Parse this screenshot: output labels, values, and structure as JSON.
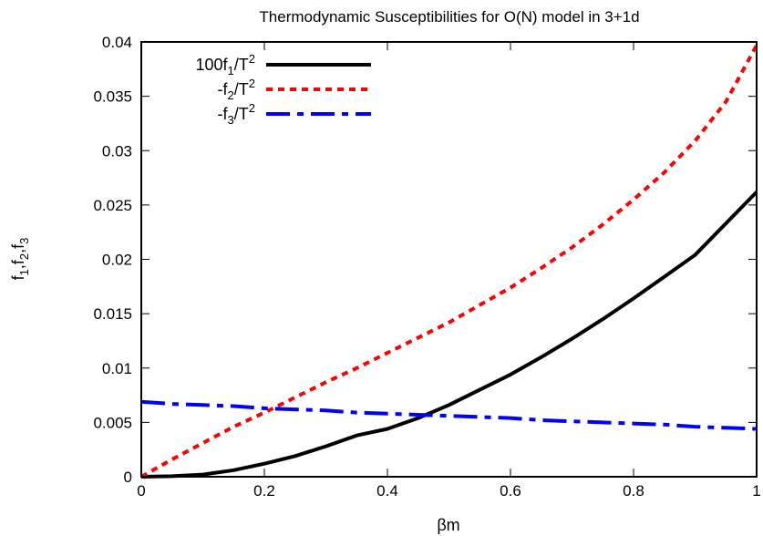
{
  "chart_data": {
    "type": "line",
    "title": "Thermodynamic Susceptibilities for O(N) model in 3+1d",
    "xlabel": "βm",
    "ylabel": {
      "base": "f",
      "subs": [
        "1",
        "2",
        "3"
      ]
    },
    "xlim": [
      0,
      1
    ],
    "ylim": [
      0,
      0.04
    ],
    "x_ticks": [
      "0",
      "0.2",
      "0.4",
      "0.6",
      "0.8",
      "1"
    ],
    "y_ticks": [
      "0",
      "0.005",
      "0.01",
      "0.015",
      "0.02",
      "0.025",
      "0.03",
      "0.035",
      "0.04"
    ],
    "legend_position": "top-left",
    "x": [
      0,
      0.05,
      0.1,
      0.15,
      0.2,
      0.25,
      0.3,
      0.35,
      0.4,
      0.45,
      0.5,
      0.55,
      0.6,
      0.65,
      0.7,
      0.75,
      0.8,
      0.85,
      0.9,
      0.95,
      1.0
    ],
    "series": [
      {
        "legend": {
          "prefix": "100f",
          "sub": "1",
          "mid": "/T",
          "sup": "2"
        },
        "color": "#000000",
        "style": "solid",
        "values": [
          0,
          5e-05,
          0.0002,
          0.0006,
          0.0012,
          0.0019,
          0.0028,
          0.0038,
          0.0044,
          0.0054,
          0.0066,
          0.008,
          0.0094,
          0.011,
          0.0127,
          0.0145,
          0.0164,
          0.0184,
          0.0204,
          0.0233,
          0.0262
        ]
      },
      {
        "legend": {
          "prefix": "-f",
          "sub": "2",
          "mid": "/T",
          "sup": "2"
        },
        "color": "#ff0000",
        "style": "dotted",
        "values": [
          0,
          0.0016,
          0.0031,
          0.0046,
          0.0059,
          0.0073,
          0.0087,
          0.01,
          0.0114,
          0.0128,
          0.0142,
          0.0158,
          0.0174,
          0.0192,
          0.0211,
          0.0232,
          0.0255,
          0.028,
          0.0309,
          0.0345,
          0.0397
        ]
      },
      {
        "legend": {
          "prefix": "-f",
          "sub": "3",
          "mid": "/T",
          "sup": "2"
        },
        "color": "#0000ff",
        "style": "dash-dot",
        "values": [
          0.0069,
          0.0067,
          0.0066,
          0.0065,
          0.0063,
          0.0062,
          0.0061,
          0.0059,
          0.0058,
          0.0057,
          0.0056,
          0.0055,
          0.0054,
          0.0052,
          0.0051,
          0.005,
          0.0049,
          0.0048,
          0.0046,
          0.0045,
          0.0044
        ]
      }
    ]
  }
}
